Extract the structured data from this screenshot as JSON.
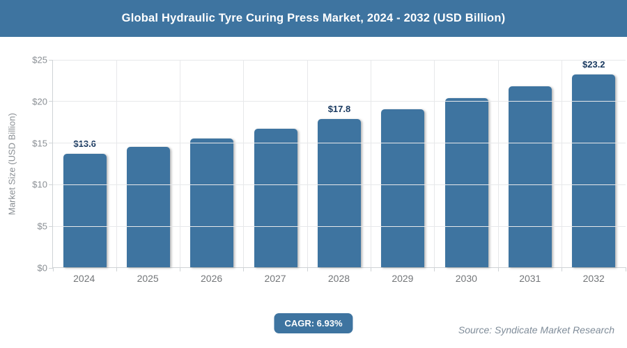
{
  "header": {
    "title": "Global Hydraulic Tyre Curing Press Market, 2024 - 2032 (USD Billion)"
  },
  "chart_data": {
    "type": "bar",
    "title": "Global Hydraulic Tyre Curing Press Market, 2024 - 2032 (USD Billion)",
    "categories": [
      "2024",
      "2025",
      "2026",
      "2027",
      "2028",
      "2029",
      "2030",
      "2031",
      "2032"
    ],
    "values": [
      13.6,
      14.5,
      15.5,
      16.6,
      17.8,
      19.0,
      20.3,
      21.7,
      23.2
    ],
    "point_labels": [
      "$13.6",
      "",
      "",
      "",
      "$17.8",
      "",
      "",
      "",
      "$23.2"
    ],
    "xlabel": "",
    "ylabel": "Market Size (USD Billion)",
    "ylim": [
      0,
      25
    ],
    "ytick_step": 5,
    "ytick_labels": [
      "$0",
      "$5",
      "$10",
      "$15",
      "$20",
      "$25"
    ],
    "grid": true,
    "legend": "none",
    "bar_color": "#3e74a0"
  },
  "footer": {
    "cagr_label": "CAGR: 6.93%",
    "source": "Source: Syndicate Market Research"
  },
  "colors": {
    "accent": "#3e74a0",
    "bar": "#3e74a0",
    "data_label": "#17375e",
    "axis_text": "#8a8f94",
    "source_text": "#7f8c99"
  }
}
